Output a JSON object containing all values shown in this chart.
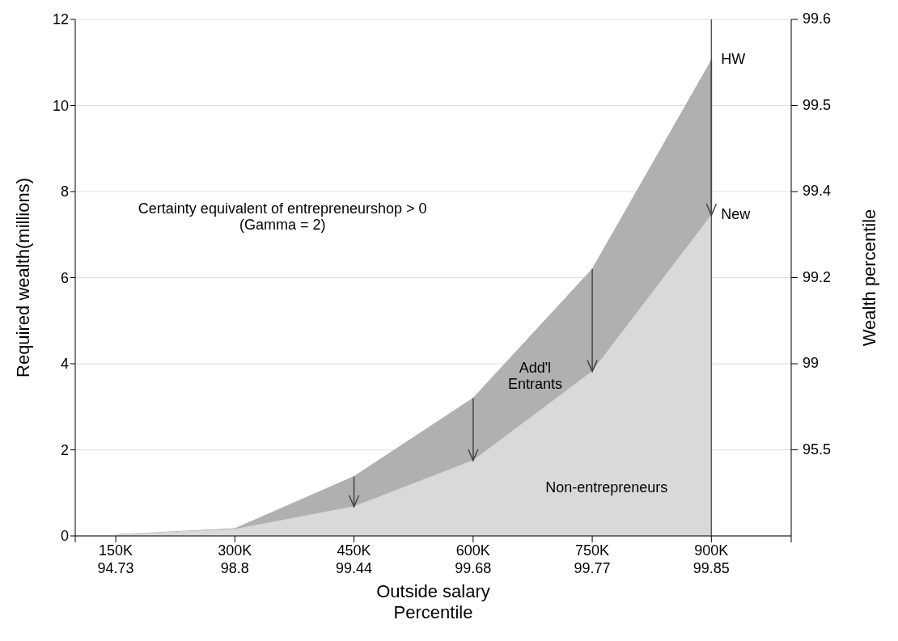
{
  "chart_data": {
    "type": "area",
    "xlabel": "Outside salary\nPercentile",
    "ylabel": "Required wealth(millions)",
    "y2label": "Wealth percentile",
    "categories": [
      "150K\n94.73",
      "300K\n98.8",
      "450K\n99.44",
      "600K\n99.68",
      "750K\n99.77",
      "900K\n99.85"
    ],
    "series": [
      {
        "name": "HW",
        "color": "#b0b0b0",
        "values": [
          0.03,
          0.17,
          1.38,
          3.2,
          6.2,
          11.05
        ]
      },
      {
        "name": "New",
        "color": "#d9d9d9",
        "values": [
          0.03,
          0.15,
          0.68,
          1.75,
          3.82,
          7.45
        ]
      }
    ],
    "ylim": [
      0,
      12
    ],
    "yticks": [
      0,
      2,
      4,
      6,
      8,
      10,
      12
    ],
    "ref_lines": [
      {
        "axis": "x",
        "value": "900K\n99.85",
        "label": null,
        "color": "#555555"
      }
    ],
    "annotations": [
      "Certainty equivalent of entrepreneurshop > 0\n(Gamma = 2)",
      "Add'l\nEntrants",
      "Non-entrepreneurs",
      "99.6",
      "99.5",
      "99.4",
      "99.2",
      "99",
      "95.5"
    ],
    "grid": "y"
  }
}
